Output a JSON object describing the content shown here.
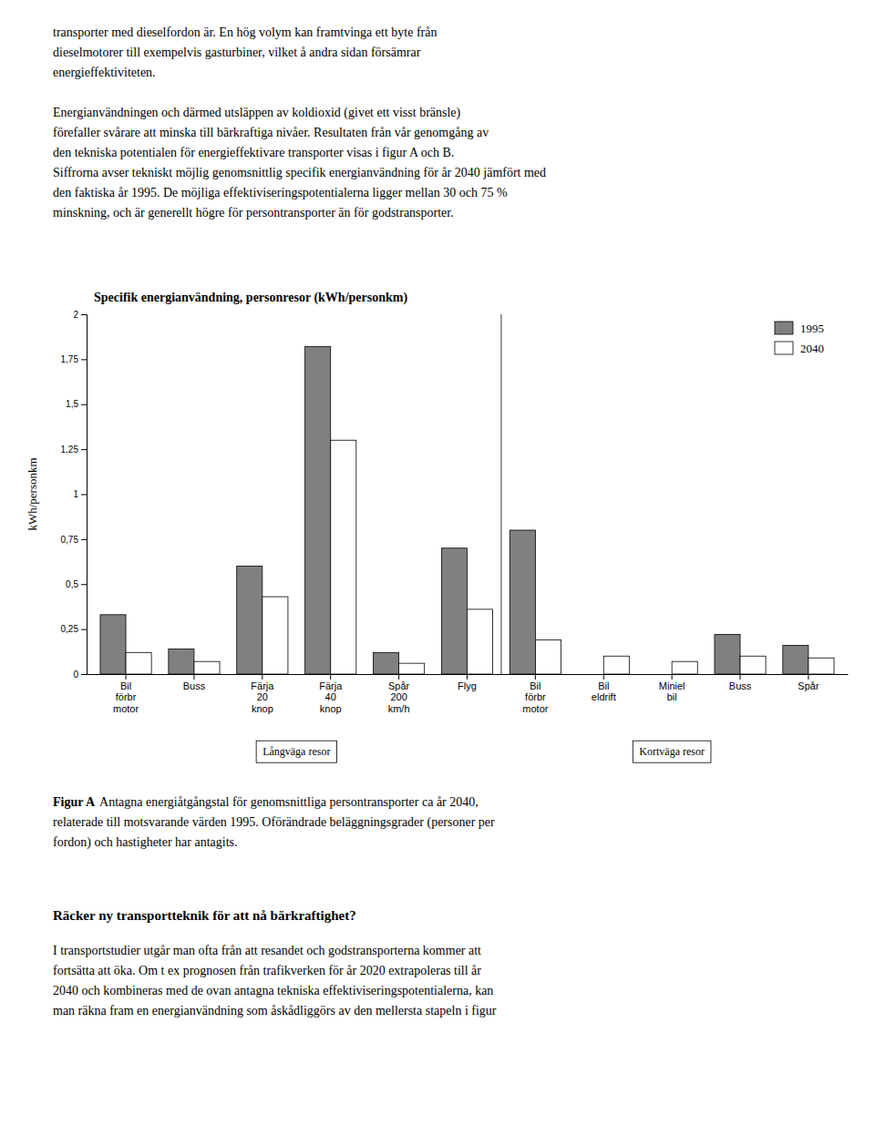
{
  "page_text": {
    "above": [
      [
        "transporter med dieselfordon är. En hög volym kan framtvinga ett byte från",
        "dieselmotorer till exempelvis gasturbiner, vilket å andra sidan försämrar",
        "energieffektiviteten."
      ],
      [
        "Energianvändningen och därmed utsläppen av koldioxid (givet ett visst bränsle)",
        "förefaller svårare att minska till bärkraftiga nivåer. Resultaten från vår genomgång av",
        "den tekniska potentialen för energieffektivare transporter visas i figur A och B.",
        "Siffrorna avser tekniskt möjlig genomsnittlig specifik energianvändning för år 2040 jämfört med",
        "den faktiska år 1995. De möjliga effektiviseringspotentialerna ligger mellan 30 och 75 %",
        "minskning, och är generellt högre för persontransporter än för godstransporter."
      ]
    ],
    "caption_label": "Figur A",
    "caption": [
      "Antagna energiåtgångstal för genomsnittliga persontransporter ca år 2040,",
      "relaterade till motsvarande värden 1995. Oförändrade beläggningsgrader (personer per",
      "fordon) och hastigheter har antagits."
    ],
    "heading": "Räcker ny transportteknik för att nå bärkraftighet?",
    "body": [
      "I transportstudier utgår man ofta från att resandet och godstransporterna kommer att",
      "fortsätta att öka. Om t ex prognosen från trafikverken för år 2020 extrapoleras till år",
      "2040 och kombineras med de ovan antagna tekniska effektiviseringspotentialerna, kan",
      "man räkna fram en energianvändning som åskådliggörs av den mellersta stapeln i figur"
    ]
  },
  "chart_data": {
    "type": "bar",
    "title": "Specifik energianvändning, personresor (kWh/personkm)",
    "ylabel": "kWh/personkm",
    "categories": [
      "Bil\nförbr\nmotor",
      "Buss",
      "Färja\n20\nknop",
      "Färja\n40\nknop",
      "Spår\n200\nkm/h",
      "Flyg",
      "Bil\nförbr\nmotor",
      "Bil\neldrift",
      "Miniel\nbil",
      "Buss",
      "Spår"
    ],
    "series": [
      {
        "name": "1995",
        "color": "#808080",
        "values": [
          0.33,
          0.14,
          0.6,
          1.82,
          0.12,
          0.7,
          0.8,
          0.0,
          0.0,
          0.22,
          0.16
        ]
      },
      {
        "name": "2040",
        "color": "#ffffff",
        "values": [
          0.12,
          0.07,
          0.43,
          1.3,
          0.06,
          0.36,
          0.19,
          0.1,
          0.07,
          0.1,
          0.09
        ]
      }
    ],
    "ylim": [
      0,
      2.0
    ],
    "yticks": [
      0,
      {
        "value": 0.25,
        "label": "0,25"
      },
      {
        "value": 0.5,
        "label": "0,5"
      },
      {
        "value": 0.75,
        "label": "0,75"
      },
      1,
      {
        "value": 1.25,
        "label": "1,25"
      },
      {
        "value": 1.5,
        "label": "1,5"
      },
      {
        "value": 1.75,
        "label": "1,75"
      },
      2
    ],
    "legend": "upper right",
    "grid": false,
    "annotations": [
      "Långväga resor",
      "Kortväga resor"
    ]
  }
}
